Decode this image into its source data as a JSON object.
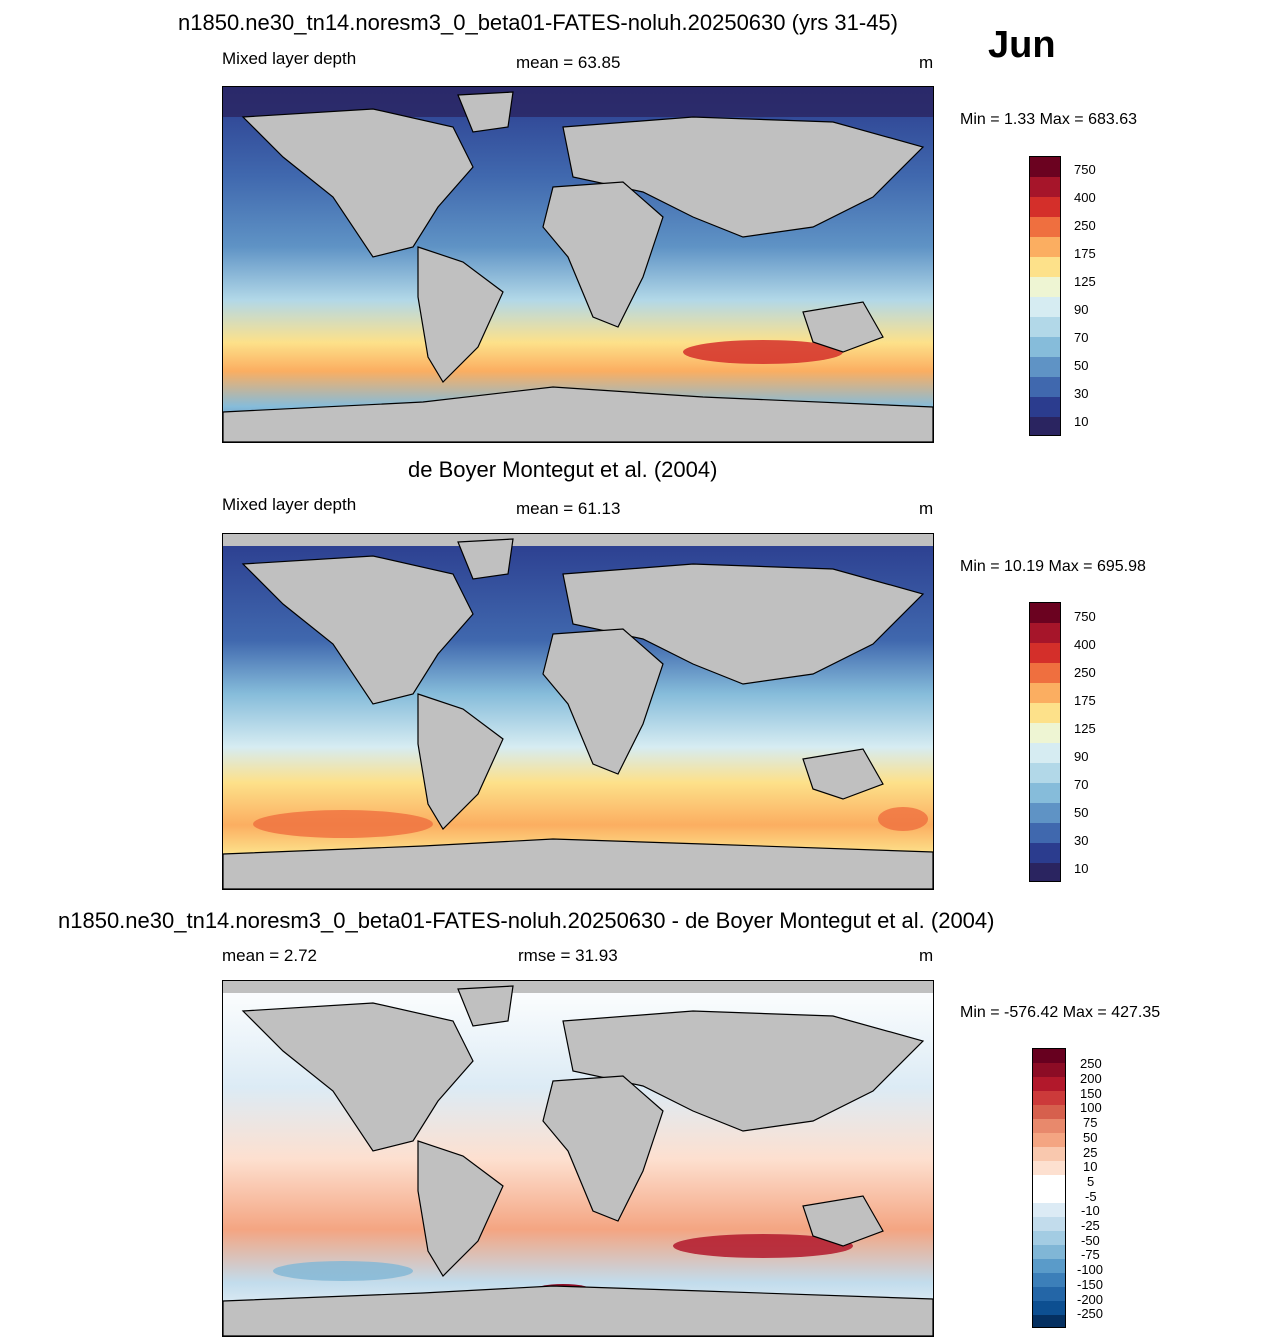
{
  "month": "Jun",
  "panels": [
    {
      "title": "n1850.ne30_tn14.noresm3_0_beta01-FATES-noluh.20250630 (yrs 31-45)",
      "left_label": "Mixed layer depth",
      "center_label": "mean =  63.85",
      "units": "m",
      "minmax": "Min =   1.33 Max = 683.63",
      "colorbar_labels": [
        "750",
        "400",
        "250",
        "175",
        "125",
        "90",
        "70",
        "50",
        "30",
        "10"
      ]
    },
    {
      "title": "de Boyer Montegut et al. (2004)",
      "left_label": "Mixed layer depth",
      "center_label": "mean =  61.13",
      "units": "m",
      "minmax": "Min =  10.19 Max = 695.98",
      "colorbar_labels": [
        "750",
        "400",
        "250",
        "175",
        "125",
        "90",
        "70",
        "50",
        "30",
        "10"
      ]
    },
    {
      "title": "n1850.ne30_tn14.noresm3_0_beta01-FATES-noluh.20250630 - de Boyer Montegut et al. (2004)",
      "left_label": "mean =   2.72",
      "center_label": "rmse =  31.93",
      "units": "m",
      "minmax": "Min = -576.42 Max = 427.35",
      "colorbar_labels": [
        "250",
        "200",
        "150",
        "100",
        "75",
        "50",
        "25",
        "10",
        "5",
        "-5",
        "-10",
        "-25",
        "-50",
        "-75",
        "-100",
        "-150",
        "-200",
        "-250"
      ]
    }
  ],
  "colors": {
    "seq": [
      "#6b0220",
      "#a6152a",
      "#d42f2a",
      "#ef6f3f",
      "#fbae61",
      "#fde18a",
      "#eef5d3",
      "#d6ecf2",
      "#b2d8e8",
      "#86bcda",
      "#5f93c5",
      "#4068ae",
      "#2b3c8e",
      "#2a2460"
    ],
    "div": [
      "#67001f",
      "#8c0c25",
      "#b2182b",
      "#cc3a3a",
      "#d6604d",
      "#e8896c",
      "#f4a582",
      "#f9c8ae",
      "#fde0d0",
      "#ffffff",
      "#ffffff",
      "#dcebf5",
      "#c2dcec",
      "#a3cce3",
      "#80b6d6",
      "#5a9bc9",
      "#3c7fb9",
      "#2466a7",
      "#0d4f91",
      "#053061"
    ],
    "land": "#c0c0c0"
  }
}
